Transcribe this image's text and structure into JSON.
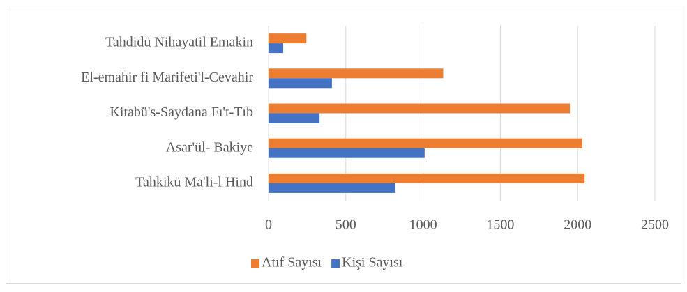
{
  "chart_data": {
    "type": "bar",
    "orientation": "horizontal",
    "categories": [
      "Tahdidü Nihayatil Emakin",
      "El-emahir fi Marifeti'l-Cevahir",
      "Kitabü's-Saydana Fı't-Tıb",
      "Asar'ül- Bakiye",
      "Tahkikü Ma'li-l Hind"
    ],
    "series": [
      {
        "name": "Atıf Sayısı",
        "color": "#ed7d31",
        "values": [
          245,
          1130,
          1950,
          2030,
          2045
        ]
      },
      {
        "name": "Kişi Sayısı",
        "color": "#4472c4",
        "values": [
          95,
          410,
          330,
          1010,
          820
        ]
      }
    ],
    "xlim": [
      0,
      2500
    ],
    "xticks": [
      0,
      500,
      1000,
      1500,
      2000,
      2500
    ],
    "grid": true,
    "legend": "bottom"
  }
}
